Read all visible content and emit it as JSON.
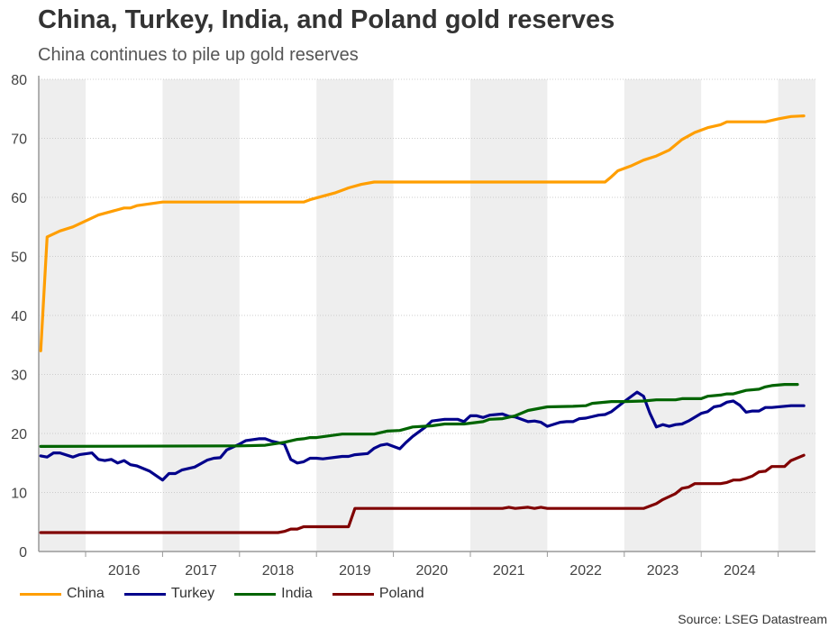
{
  "chart_data": {
    "type": "line",
    "title": "China, Turkey, India, and Poland gold reserves",
    "subtitle": "China continues to pile up gold reserves",
    "source": "Source: LSEG Datastream",
    "xlim": [
      "2015-06",
      "2025-07"
    ],
    "ylim": [
      0,
      80
    ],
    "yticks": [
      "0",
      "10",
      "20",
      "30",
      "40",
      "50",
      "60",
      "70",
      "80"
    ],
    "xticks": [
      "2016",
      "2017",
      "2018",
      "2019",
      "2020",
      "2021",
      "2022",
      "2023",
      "2024"
    ],
    "shaded_years": [
      "2015",
      "2017",
      "2019",
      "2021",
      "2023",
      "2025"
    ],
    "grid": true,
    "legend": "bottom",
    "series": [
      {
        "name": "China",
        "color": "#FF9E00",
        "points": [
          [
            "2015-06",
            34
          ],
          [
            "2015-07",
            53.3
          ],
          [
            "2015-09",
            54.3
          ],
          [
            "2015-11",
            55.0
          ],
          [
            "2016-01",
            56.0
          ],
          [
            "2016-03",
            57.0
          ],
          [
            "2016-05",
            57.6
          ],
          [
            "2016-07",
            58.2
          ],
          [
            "2016-08",
            58.2
          ],
          [
            "2016-09",
            58.6
          ],
          [
            "2016-11",
            58.9
          ],
          [
            "2017-01",
            59.2
          ],
          [
            "2018-11",
            59.2
          ],
          [
            "2018-12",
            59.6
          ],
          [
            "2019-02",
            60.2
          ],
          [
            "2019-04",
            60.8
          ],
          [
            "2019-06",
            61.6
          ],
          [
            "2019-08",
            62.2
          ],
          [
            "2019-10",
            62.6
          ],
          [
            "2022-10",
            62.6
          ],
          [
            "2022-11",
            63.5
          ],
          [
            "2022-12",
            64.5
          ],
          [
            "2023-02",
            65.3
          ],
          [
            "2023-04",
            66.3
          ],
          [
            "2023-06",
            67.0
          ],
          [
            "2023-08",
            68.0
          ],
          [
            "2023-10",
            69.8
          ],
          [
            "2023-12",
            71.0
          ],
          [
            "2024-02",
            71.8
          ],
          [
            "2024-04",
            72.3
          ],
          [
            "2024-05",
            72.8
          ],
          [
            "2024-11",
            72.8
          ],
          [
            "2025-01",
            73.3
          ],
          [
            "2025-03",
            73.7
          ],
          [
            "2025-05",
            73.8
          ]
        ]
      },
      {
        "name": "Turkey",
        "color": "#00008B",
        "points": [
          [
            "2015-06",
            16.2
          ],
          [
            "2015-07",
            16.0
          ],
          [
            "2015-08",
            16.7
          ],
          [
            "2015-09",
            16.7
          ],
          [
            "2015-11",
            16.0
          ],
          [
            "2015-12",
            16.4
          ],
          [
            "2016-02",
            16.7
          ],
          [
            "2016-03",
            15.6
          ],
          [
            "2016-04",
            15.4
          ],
          [
            "2016-05",
            15.6
          ],
          [
            "2016-06",
            15.0
          ],
          [
            "2016-07",
            15.4
          ],
          [
            "2016-08",
            14.7
          ],
          [
            "2016-09",
            14.5
          ],
          [
            "2016-11",
            13.6
          ],
          [
            "2017-01",
            12.1
          ],
          [
            "2017-02",
            13.2
          ],
          [
            "2017-03",
            13.2
          ],
          [
            "2017-04",
            13.8
          ],
          [
            "2017-06",
            14.3
          ],
          [
            "2017-08",
            15.5
          ],
          [
            "2017-09",
            15.8
          ],
          [
            "2017-10",
            15.9
          ],
          [
            "2017-11",
            17.2
          ],
          [
            "2018-01",
            18.2
          ],
          [
            "2018-02",
            18.8
          ],
          [
            "2018-04",
            19.1
          ],
          [
            "2018-05",
            19.1
          ],
          [
            "2018-06",
            18.7
          ],
          [
            "2018-08",
            18.2
          ],
          [
            "2018-09",
            15.6
          ],
          [
            "2018-10",
            15.0
          ],
          [
            "2018-11",
            15.2
          ],
          [
            "2018-12",
            15.8
          ],
          [
            "2019-01",
            15.8
          ],
          [
            "2019-02",
            15.7
          ],
          [
            "2019-05",
            16.1
          ],
          [
            "2019-06",
            16.1
          ],
          [
            "2019-07",
            16.4
          ],
          [
            "2019-09",
            16.6
          ],
          [
            "2019-10",
            17.5
          ],
          [
            "2019-11",
            18.0
          ],
          [
            "2019-12",
            18.2
          ],
          [
            "2020-02",
            17.4
          ],
          [
            "2020-03",
            18.5
          ],
          [
            "2020-04",
            19.5
          ],
          [
            "2020-06",
            21.1
          ],
          [
            "2020-07",
            22.1
          ],
          [
            "2020-09",
            22.4
          ],
          [
            "2020-11",
            22.4
          ],
          [
            "2020-12",
            22.0
          ],
          [
            "2021-01",
            23.0
          ],
          [
            "2021-02",
            23.0
          ],
          [
            "2021-03",
            22.7
          ],
          [
            "2021-04",
            23.1
          ],
          [
            "2021-06",
            23.3
          ],
          [
            "2021-07",
            22.9
          ],
          [
            "2021-08",
            22.8
          ],
          [
            "2021-10",
            22.0
          ],
          [
            "2021-11",
            22.1
          ],
          [
            "2021-12",
            21.9
          ],
          [
            "2022-01",
            21.2
          ],
          [
            "2022-03",
            21.9
          ],
          [
            "2022-04",
            22.0
          ],
          [
            "2022-05",
            22.0
          ],
          [
            "2022-06",
            22.5
          ],
          [
            "2022-07",
            22.6
          ],
          [
            "2022-09",
            23.1
          ],
          [
            "2022-10",
            23.2
          ],
          [
            "2022-11",
            23.7
          ],
          [
            "2023-01",
            25.4
          ],
          [
            "2023-03",
            27.0
          ],
          [
            "2023-04",
            26.3
          ],
          [
            "2023-05",
            23.4
          ],
          [
            "2023-06",
            21.1
          ],
          [
            "2023-07",
            21.5
          ],
          [
            "2023-08",
            21.2
          ],
          [
            "2023-09",
            21.5
          ],
          [
            "2023-10",
            21.6
          ],
          [
            "2023-11",
            22.1
          ],
          [
            "2024-01",
            23.4
          ],
          [
            "2024-02",
            23.7
          ],
          [
            "2024-03",
            24.5
          ],
          [
            "2024-04",
            24.7
          ],
          [
            "2024-05",
            25.3
          ],
          [
            "2024-06",
            25.5
          ],
          [
            "2024-07",
            24.8
          ],
          [
            "2024-08",
            23.6
          ],
          [
            "2024-09",
            23.8
          ],
          [
            "2024-10",
            23.8
          ],
          [
            "2024-11",
            24.4
          ],
          [
            "2024-12",
            24.4
          ],
          [
            "2025-03",
            24.7
          ],
          [
            "2025-05",
            24.7
          ]
        ]
      },
      {
        "name": "India",
        "color": "#006400",
        "points": [
          [
            "2015-06",
            17.8
          ],
          [
            "2018-01",
            17.9
          ],
          [
            "2018-05",
            18.0
          ],
          [
            "2018-08",
            18.5
          ],
          [
            "2018-10",
            19.0
          ],
          [
            "2018-11",
            19.1
          ],
          [
            "2018-12",
            19.3
          ],
          [
            "2019-01",
            19.3
          ],
          [
            "2019-05",
            19.9
          ],
          [
            "2019-10",
            19.9
          ],
          [
            "2019-12",
            20.4
          ],
          [
            "2020-02",
            20.5
          ],
          [
            "2020-04",
            21.1
          ],
          [
            "2020-07",
            21.3
          ],
          [
            "2020-09",
            21.6
          ],
          [
            "2020-12",
            21.6
          ],
          [
            "2021-03",
            22.0
          ],
          [
            "2021-04",
            22.4
          ],
          [
            "2021-06",
            22.5
          ],
          [
            "2021-08",
            23.0
          ],
          [
            "2021-10",
            23.9
          ],
          [
            "2022-01",
            24.5
          ],
          [
            "2022-05",
            24.6
          ],
          [
            "2022-07",
            24.7
          ],
          [
            "2022-08",
            25.1
          ],
          [
            "2022-11",
            25.4
          ],
          [
            "2023-01",
            25.4
          ],
          [
            "2023-04",
            25.5
          ],
          [
            "2023-06",
            25.7
          ],
          [
            "2023-09",
            25.7
          ],
          [
            "2023-10",
            25.9
          ],
          [
            "2024-01",
            25.9
          ],
          [
            "2024-02",
            26.3
          ],
          [
            "2024-04",
            26.5
          ],
          [
            "2024-05",
            26.7
          ],
          [
            "2024-06",
            26.7
          ],
          [
            "2024-08",
            27.3
          ],
          [
            "2024-10",
            27.5
          ],
          [
            "2024-11",
            27.9
          ],
          [
            "2024-12",
            28.1
          ],
          [
            "2025-02",
            28.3
          ],
          [
            "2025-04",
            28.3
          ]
        ]
      },
      {
        "name": "Poland",
        "color": "#800000",
        "points": [
          [
            "2015-06",
            3.2
          ],
          [
            "2018-07",
            3.2
          ],
          [
            "2018-08",
            3.4
          ],
          [
            "2018-09",
            3.8
          ],
          [
            "2018-10",
            3.8
          ],
          [
            "2018-11",
            4.2
          ],
          [
            "2019-06",
            4.2
          ],
          [
            "2019-07",
            7.3
          ],
          [
            "2021-06",
            7.3
          ],
          [
            "2021-07",
            7.5
          ],
          [
            "2021-08",
            7.3
          ],
          [
            "2021-10",
            7.5
          ],
          [
            "2021-11",
            7.3
          ],
          [
            "2021-12",
            7.5
          ],
          [
            "2022-01",
            7.3
          ],
          [
            "2023-04",
            7.3
          ],
          [
            "2023-06",
            8.1
          ],
          [
            "2023-07",
            8.8
          ],
          [
            "2023-09",
            9.8
          ],
          [
            "2023-10",
            10.7
          ],
          [
            "2023-11",
            10.9
          ],
          [
            "2023-12",
            11.5
          ],
          [
            "2024-04",
            11.5
          ],
          [
            "2024-05",
            11.7
          ],
          [
            "2024-06",
            12.1
          ],
          [
            "2024-07",
            12.1
          ],
          [
            "2024-08",
            12.4
          ],
          [
            "2024-09",
            12.8
          ],
          [
            "2024-10",
            13.5
          ],
          [
            "2024-11",
            13.6
          ],
          [
            "2024-12",
            14.4
          ],
          [
            "2025-02",
            14.4
          ],
          [
            "2025-03",
            15.4
          ],
          [
            "2025-05",
            16.3
          ]
        ]
      }
    ]
  }
}
